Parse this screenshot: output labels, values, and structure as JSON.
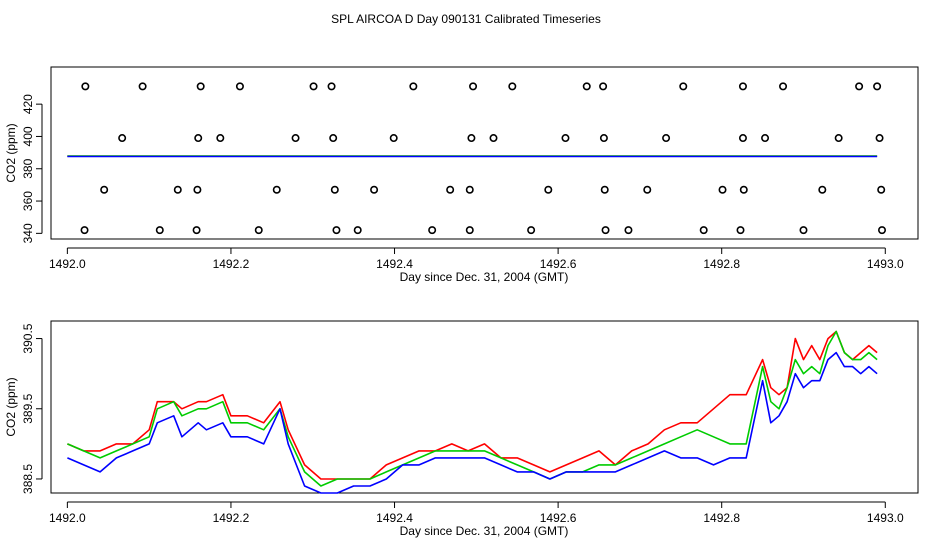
{
  "page_title": "SPL AIRCOA D  Day 090131  Calibrated Timeseries",
  "chart_data": [
    {
      "type": "scatter",
      "xlabel": "Day since Dec. 31, 2004 (GMT)",
      "ylabel": "CO2 (ppm)",
      "xlim": [
        1491.98,
        1493.04
      ],
      "ylim": [
        336.5,
        443
      ],
      "xticks": [
        1492.0,
        1492.2,
        1492.4,
        1492.6,
        1492.8,
        1493.0
      ],
      "xtick_labels": [
        "1492.0",
        "1492.2",
        "1492.4",
        "1492.6",
        "1492.8",
        "1493.0"
      ],
      "yticks": [
        340,
        360,
        380,
        400,
        420
      ],
      "ytick_labels": [
        "340",
        "360",
        "380",
        "400",
        "420"
      ],
      "marker": "open-circle",
      "points": {
        "x": [
          1492.022,
          1492.092,
          1492.163,
          1492.211,
          1492.301,
          1492.323,
          1492.423,
          1492.496,
          1492.544,
          1492.635,
          1492.655,
          1492.753,
          1492.826,
          1492.875,
          1492.968,
          1492.99,
          1492.067,
          1492.16,
          1492.187,
          1492.279,
          1492.325,
          1492.399,
          1492.494,
          1492.521,
          1492.609,
          1492.656,
          1492.732,
          1492.826,
          1492.853,
          1492.943,
          1492.993,
          1492.045,
          1492.135,
          1492.159,
          1492.256,
          1492.327,
          1492.375,
          1492.468,
          1492.492,
          1492.588,
          1492.657,
          1492.709,
          1492.801,
          1492.827,
          1492.923,
          1492.995,
          1492.021,
          1492.113,
          1492.158,
          1492.234,
          1492.329,
          1492.355,
          1492.446,
          1492.492,
          1492.567,
          1492.658,
          1492.686,
          1492.778,
          1492.823,
          1492.9,
          1492.996
        ],
        "y": [
          431,
          431,
          431,
          431,
          431,
          431,
          431,
          431,
          431,
          431,
          431,
          431,
          431,
          431,
          431,
          431,
          399,
          399,
          399,
          399,
          399,
          399,
          399,
          399,
          399,
          399,
          399,
          399,
          399,
          399,
          399,
          367,
          367,
          367,
          367,
          367,
          367,
          367,
          367,
          367,
          367,
          367,
          367,
          367,
          367,
          367,
          342,
          342,
          342,
          342,
          342,
          342,
          342,
          342,
          342,
          342,
          342,
          342,
          342,
          342,
          342
        ]
      },
      "series": [
        {
          "name": "red",
          "color": "#ff0000",
          "y_level": 387.8
        },
        {
          "name": "green",
          "color": "#00cc00",
          "y_level": 387.9
        },
        {
          "name": "blue",
          "color": "#0000ff",
          "y_level": 387.6
        }
      ],
      "series_x_range": [
        1492.0,
        1492.99
      ]
    },
    {
      "type": "line",
      "xlabel": "Day since Dec. 31, 2004 (GMT)",
      "ylabel": "CO2 (ppm)",
      "xlim": [
        1491.98,
        1493.04
      ],
      "ylim": [
        388.3,
        390.75
      ],
      "xticks": [
        1492.0,
        1492.2,
        1492.4,
        1492.6,
        1492.8,
        1493.0
      ],
      "xtick_labels": [
        "1492.0",
        "1492.2",
        "1492.4",
        "1492.6",
        "1492.8",
        "1493.0"
      ],
      "yticks": [
        388.5,
        389.5,
        390.5
      ],
      "ytick_labels": [
        "388.5",
        "389.5",
        "390.5"
      ],
      "series": [
        {
          "name": "red",
          "color": "#ff0000",
          "x": [
            1492.0,
            1492.02,
            1492.04,
            1492.06,
            1492.08,
            1492.1,
            1492.11,
            1492.13,
            1492.14,
            1492.16,
            1492.17,
            1492.19,
            1492.2,
            1492.22,
            1492.24,
            1492.26,
            1492.27,
            1492.29,
            1492.31,
            1492.33,
            1492.35,
            1492.37,
            1492.39,
            1492.41,
            1492.43,
            1492.45,
            1492.47,
            1492.49,
            1492.51,
            1492.53,
            1492.55,
            1492.57,
            1492.59,
            1492.61,
            1492.63,
            1492.65,
            1492.67,
            1492.69,
            1492.71,
            1492.73,
            1492.75,
            1492.77,
            1492.79,
            1492.81,
            1492.83,
            1492.85,
            1492.86,
            1492.87,
            1492.88,
            1492.89,
            1492.9,
            1492.91,
            1492.92,
            1492.93,
            1492.94,
            1492.95,
            1492.96,
            1492.97,
            1492.98,
            1492.99
          ],
          "y": [
            389.0,
            388.9,
            388.9,
            389.0,
            389.0,
            389.2,
            389.6,
            389.6,
            389.5,
            389.6,
            389.6,
            389.7,
            389.4,
            389.4,
            389.3,
            389.6,
            389.2,
            388.7,
            388.5,
            388.5,
            388.5,
            388.5,
            388.7,
            388.8,
            388.9,
            388.9,
            389.0,
            388.9,
            389.0,
            388.8,
            388.8,
            388.7,
            388.6,
            388.7,
            388.8,
            388.9,
            388.7,
            388.9,
            389.0,
            389.2,
            389.3,
            389.3,
            389.5,
            389.7,
            389.7,
            390.2,
            389.8,
            389.7,
            389.8,
            390.5,
            390.2,
            390.4,
            390.2,
            390.5,
            390.6,
            390.3,
            390.2,
            390.3,
            390.4,
            390.3
          ]
        },
        {
          "name": "green",
          "color": "#00cc00",
          "x": [
            1492.0,
            1492.02,
            1492.04,
            1492.06,
            1492.08,
            1492.1,
            1492.11,
            1492.13,
            1492.14,
            1492.16,
            1492.17,
            1492.19,
            1492.2,
            1492.22,
            1492.24,
            1492.26,
            1492.27,
            1492.29,
            1492.31,
            1492.33,
            1492.35,
            1492.37,
            1492.39,
            1492.41,
            1492.43,
            1492.45,
            1492.47,
            1492.49,
            1492.51,
            1492.53,
            1492.55,
            1492.57,
            1492.59,
            1492.61,
            1492.63,
            1492.65,
            1492.67,
            1492.69,
            1492.71,
            1492.73,
            1492.75,
            1492.77,
            1492.79,
            1492.81,
            1492.83,
            1492.85,
            1492.86,
            1492.87,
            1492.88,
            1492.89,
            1492.9,
            1492.91,
            1492.92,
            1492.93,
            1492.94,
            1492.95,
            1492.96,
            1492.97,
            1492.98,
            1492.99
          ],
          "y": [
            389.0,
            388.9,
            388.8,
            388.9,
            389.0,
            389.1,
            389.5,
            389.6,
            389.4,
            389.5,
            389.5,
            389.6,
            389.3,
            389.3,
            389.2,
            389.5,
            389.1,
            388.6,
            388.4,
            388.5,
            388.5,
            388.5,
            388.6,
            388.7,
            388.8,
            388.9,
            388.9,
            388.9,
            388.9,
            388.8,
            388.7,
            388.6,
            388.5,
            388.6,
            388.6,
            388.7,
            388.7,
            388.8,
            388.9,
            389.0,
            389.1,
            389.2,
            389.1,
            389.0,
            389.0,
            390.1,
            389.6,
            389.5,
            389.8,
            390.2,
            390.0,
            390.1,
            390.0,
            390.4,
            390.6,
            390.3,
            390.2,
            390.2,
            390.3,
            390.2
          ]
        },
        {
          "name": "blue",
          "color": "#0000ff",
          "x": [
            1492.0,
            1492.02,
            1492.04,
            1492.06,
            1492.08,
            1492.1,
            1492.11,
            1492.13,
            1492.14,
            1492.16,
            1492.17,
            1492.19,
            1492.2,
            1492.22,
            1492.24,
            1492.26,
            1492.27,
            1492.29,
            1492.31,
            1492.33,
            1492.35,
            1492.37,
            1492.39,
            1492.41,
            1492.43,
            1492.45,
            1492.47,
            1492.49,
            1492.51,
            1492.53,
            1492.55,
            1492.57,
            1492.59,
            1492.61,
            1492.63,
            1492.65,
            1492.67,
            1492.69,
            1492.71,
            1492.73,
            1492.75,
            1492.77,
            1492.79,
            1492.81,
            1492.83,
            1492.85,
            1492.86,
            1492.87,
            1492.88,
            1492.89,
            1492.9,
            1492.91,
            1492.92,
            1492.93,
            1492.94,
            1492.95,
            1492.96,
            1492.97,
            1492.98,
            1492.99
          ],
          "y": [
            388.8,
            388.7,
            388.6,
            388.8,
            388.9,
            389.0,
            389.3,
            389.4,
            389.1,
            389.3,
            389.2,
            389.3,
            389.1,
            389.1,
            389.0,
            389.5,
            389.0,
            388.4,
            388.3,
            388.3,
            388.4,
            388.4,
            388.5,
            388.7,
            388.7,
            388.8,
            388.8,
            388.8,
            388.8,
            388.7,
            388.6,
            388.6,
            388.5,
            388.6,
            388.6,
            388.6,
            388.6,
            388.7,
            388.8,
            388.9,
            388.8,
            388.8,
            388.7,
            388.8,
            388.8,
            389.9,
            389.3,
            389.4,
            389.6,
            390.0,
            389.8,
            389.9,
            389.9,
            390.2,
            390.3,
            390.1,
            390.1,
            390.0,
            390.1,
            390.0
          ]
        }
      ]
    }
  ]
}
